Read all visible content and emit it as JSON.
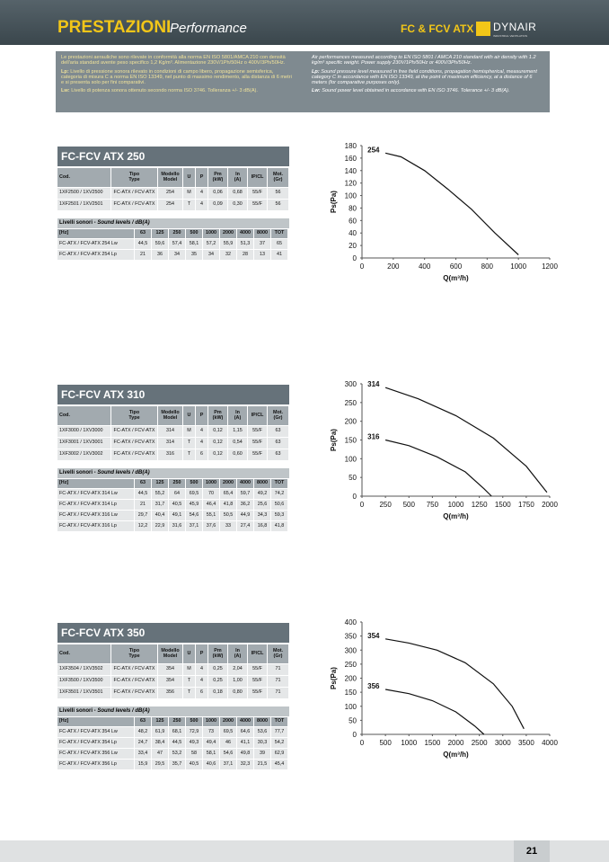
{
  "header": {
    "title": "PRESTAZIONI",
    "subtitle": "Performance",
    "product": "FC & FCV ATX",
    "brand": "DYNAIR",
    "brand_tagline": "INDUSTRIAL VENTILATION"
  },
  "intro": {
    "it": [
      {
        "text": "Le prestazioni aerauliche sono rilevate in conformità alla norma EN ISO 5801/AMCA 210 con densità dell'aria standard avente peso specifico 1,2 Kg/m³. Alimentazione 230V/1Ph/50Hz o 400V/3Ph/50Hz."
      },
      {
        "label": "Lp:",
        "text": "Livello di pressione sonora rilevato in condizioni di campo libero, propagazione semisferica, categoria di misura C a norma EN ISO 13349, nel punto di massimo rendimento, alla distanza di 6 metri e si presenta solo per fini comparativi."
      },
      {
        "label": "Lw:",
        "text": "Livello di potenza sonora ottenuto secondo norma ISO 3746. Tolleranza +/- 3 dB(A)."
      }
    ],
    "en": [
      {
        "text": "Air performances measured according to EN ISO 5801 / AMCA 210 standard with air density with 1.2 kg/m³ specific weight. Power supply 230V/1Ph/50Hz or 400V/3Ph/50Hz."
      },
      {
        "label": "Lp:",
        "text": "Sound pressure level measured in free field conditions, propagation hemispherical, measurement category C in accordance with EN ISO 13349, at the point of maximum efficiency, at a distance of 6 meters (for comparative purposes only)."
      },
      {
        "label": "Lw:",
        "text": "Sound power level obtained in accordance with EN ISO 3746. Tolerance +/- 3 dB(A)."
      }
    ]
  },
  "sections": [
    {
      "title": "FC-FCV ATX 250",
      "table": {
        "header": [
          "Cod.",
          "Tipo\nType",
          "Modello\nModel",
          "U",
          "P",
          "Pm\n(kW)",
          "In\n(A)",
          "IP/CL",
          "Mot.\n(Gr)"
        ],
        "rows": [
          [
            "1XF2500 / 1XV2500",
            "FC-ATX / FCV-ATX",
            "254",
            "M",
            "4",
            "0,06",
            "0,68",
            "55/F",
            "56"
          ],
          [
            "1XF2501 / 1XV2501",
            "FC-ATX / FCV-ATX",
            "254",
            "T",
            "4",
            "0,09",
            "0,30",
            "55/F",
            "56"
          ]
        ]
      },
      "sound": {
        "title": "Livelli sonori - ",
        "title_en": "Sound levels / dB(A)",
        "header": [
          "[Hz]",
          "63",
          "125",
          "250",
          "500",
          "1000",
          "2000",
          "4000",
          "8000",
          "TOT"
        ],
        "rows": [
          [
            "FC-ATX / FCV-ATX 254 Lw",
            "44,5",
            "59,6",
            "57,4",
            "58,1",
            "57,2",
            "55,9",
            "51,3",
            "37",
            "65"
          ],
          [
            "FC-ATX / FCV-ATX 254 Lp",
            "21",
            "36",
            "34",
            "35",
            "34",
            "32",
            "28",
            "13",
            "41"
          ]
        ]
      },
      "chart": {
        "xlabel": "Q(m³/h)",
        "ylabel": "Ps(Pa)",
        "xlim": [
          0,
          1200
        ],
        "ylim": [
          0,
          180
        ],
        "xticks": [
          0,
          200,
          400,
          600,
          800,
          1000,
          1200
        ],
        "yticks": [
          0,
          20,
          40,
          60,
          80,
          100,
          120,
          140,
          160,
          180
        ],
        "series": [
          {
            "name": "254",
            "x": [
              150,
              250,
              400,
              550,
              700,
              850,
              1000
            ],
            "y": [
              168,
              162,
              140,
              110,
              78,
              40,
              5
            ]
          }
        ]
      }
    },
    {
      "title": "FC-FCV ATX 310",
      "table": {
        "header": [
          "Cod.",
          "Tipo\nType",
          "Modello\nModel",
          "U",
          "P",
          "Pm\n(kW)",
          "In\n(A)",
          "IP/CL",
          "Mot.\n(Gr)"
        ],
        "rows": [
          [
            "1XF3000 / 1XV3000",
            "FC-ATX / FCV-ATX",
            "314",
            "M",
            "4",
            "0,12",
            "1,15",
            "55/F",
            "63"
          ],
          [
            "1XF3001 / 1XV3001",
            "FC-ATX / FCV-ATX",
            "314",
            "T",
            "4",
            "0,12",
            "0,54",
            "55/F",
            "63"
          ],
          [
            "1XF3002 / 1XV3002",
            "FC-ATX / FCV-ATX",
            "316",
            "T",
            "6",
            "0,12",
            "0,60",
            "55/F",
            "63"
          ]
        ]
      },
      "sound": {
        "title": "Livelli sonori - ",
        "title_en": "Sound levels / dB(A)",
        "header": [
          "[Hz]",
          "63",
          "125",
          "250",
          "500",
          "1000",
          "2000",
          "4000",
          "8000",
          "TOT"
        ],
        "rows": [
          [
            "FC-ATX / FCV-ATX 314 Lw",
            "44,5",
            "55,2",
            "64",
            "69,5",
            "70",
            "65,4",
            "59,7",
            "49,2",
            "74,2"
          ],
          [
            "FC-ATX / FCV-ATX 314 Lp",
            "21",
            "31,7",
            "40,5",
            "45,9",
            "46,4",
            "41,8",
            "36,2",
            "25,6",
            "50,6"
          ],
          [
            "FC-ATX / FCV-ATX 316 Lw",
            "29,7",
            "40,4",
            "49,1",
            "54,6",
            "55,1",
            "50,5",
            "44,9",
            "34,3",
            "59,3"
          ],
          [
            "FC-ATX / FCV-ATX 316 Lp",
            "12,2",
            "22,9",
            "31,6",
            "37,1",
            "37,6",
            "33",
            "27,4",
            "16,8",
            "41,8"
          ]
        ]
      },
      "chart": {
        "xlabel": "Q(m³/h)",
        "ylabel": "Ps(Pa)",
        "xlim": [
          0,
          2000
        ],
        "ylim": [
          0,
          300
        ],
        "xticks": [
          0,
          250,
          500,
          750,
          1000,
          1250,
          1500,
          1750,
          2000
        ],
        "yticks": [
          0,
          50,
          100,
          150,
          200,
          250,
          300
        ],
        "series": [
          {
            "name": "314",
            "x": [
              250,
              600,
              1000,
              1400,
              1750,
              1970
            ],
            "y": [
              290,
              260,
              215,
              155,
              80,
              10
            ]
          },
          {
            "name": "316",
            "x": [
              250,
              500,
              800,
              1100,
              1300,
              1380
            ],
            "y": [
              150,
              135,
              105,
              65,
              20,
              0
            ]
          }
        ]
      }
    },
    {
      "title": "FC-FCV ATX 350",
      "table": {
        "header": [
          "Cod.",
          "Tipo\nType",
          "Modello\nModel",
          "U",
          "P",
          "Pm\n(kW)",
          "In\n(A)",
          "IP/CL",
          "Mot.\n(Gr)"
        ],
        "rows": [
          [
            "1XF3504 / 1XV3502",
            "FC-ATX / FCV-ATX",
            "354",
            "M",
            "4",
            "0,25",
            "2,04",
            "55/F",
            "71"
          ],
          [
            "1XF3500 / 1XV3500",
            "FC-ATX / FCV-ATX",
            "354",
            "T",
            "4",
            "0,25",
            "1,00",
            "55/F",
            "71"
          ],
          [
            "1XF3501 / 1XV3501",
            "FC-ATX / FCV-ATX",
            "356",
            "T",
            "6",
            "0,18",
            "0,80",
            "55/F",
            "71"
          ]
        ]
      },
      "sound": {
        "title": "Livelli sonori - ",
        "title_en": "Sound levels / dB(A)",
        "header": [
          "[Hz]",
          "63",
          "125",
          "250",
          "500",
          "1000",
          "2000",
          "4000",
          "8000",
          "TOT"
        ],
        "rows": [
          [
            "FC-ATX / FCV-ATX 354 Lw",
            "48,2",
            "61,9",
            "68,1",
            "72,9",
            "73",
            "69,5",
            "64,6",
            "53,6",
            "77,7"
          ],
          [
            "FC-ATX / FCV-ATX 354 Lp",
            "24,7",
            "38,4",
            "44,5",
            "49,3",
            "49,4",
            "46",
            "41,1",
            "30,3",
            "54,2"
          ],
          [
            "FC-ATX / FCV-ATX 356 Lw",
            "33,4",
            "47",
            "53,2",
            "58",
            "58,1",
            "54,6",
            "49,8",
            "39",
            "62,9"
          ],
          [
            "FC-ATX / FCV-ATX 356 Lp",
            "15,9",
            "29,5",
            "35,7",
            "40,5",
            "40,6",
            "37,1",
            "32,3",
            "21,5",
            "45,4"
          ]
        ]
      },
      "chart": {
        "xlabel": "Q(m³/h)",
        "ylabel": "Ps(Pa)",
        "xlim": [
          0,
          4000
        ],
        "ylim": [
          0,
          400
        ],
        "xticks": [
          0,
          500,
          1000,
          1500,
          2000,
          2500,
          3000,
          3500,
          4000
        ],
        "yticks": [
          0,
          50,
          100,
          150,
          200,
          250,
          300,
          350,
          400
        ],
        "series": [
          {
            "name": "354",
            "x": [
              500,
              1000,
              1600,
              2200,
              2800,
              3200,
              3450
            ],
            "y": [
              340,
              325,
              300,
              255,
              180,
              100,
              20
            ]
          },
          {
            "name": "356",
            "x": [
              500,
              1000,
              1500,
              2000,
              2400,
              2600
            ],
            "y": [
              160,
              145,
              120,
              80,
              30,
              0
            ]
          }
        ]
      }
    }
  ],
  "footer": {
    "page": "21"
  }
}
